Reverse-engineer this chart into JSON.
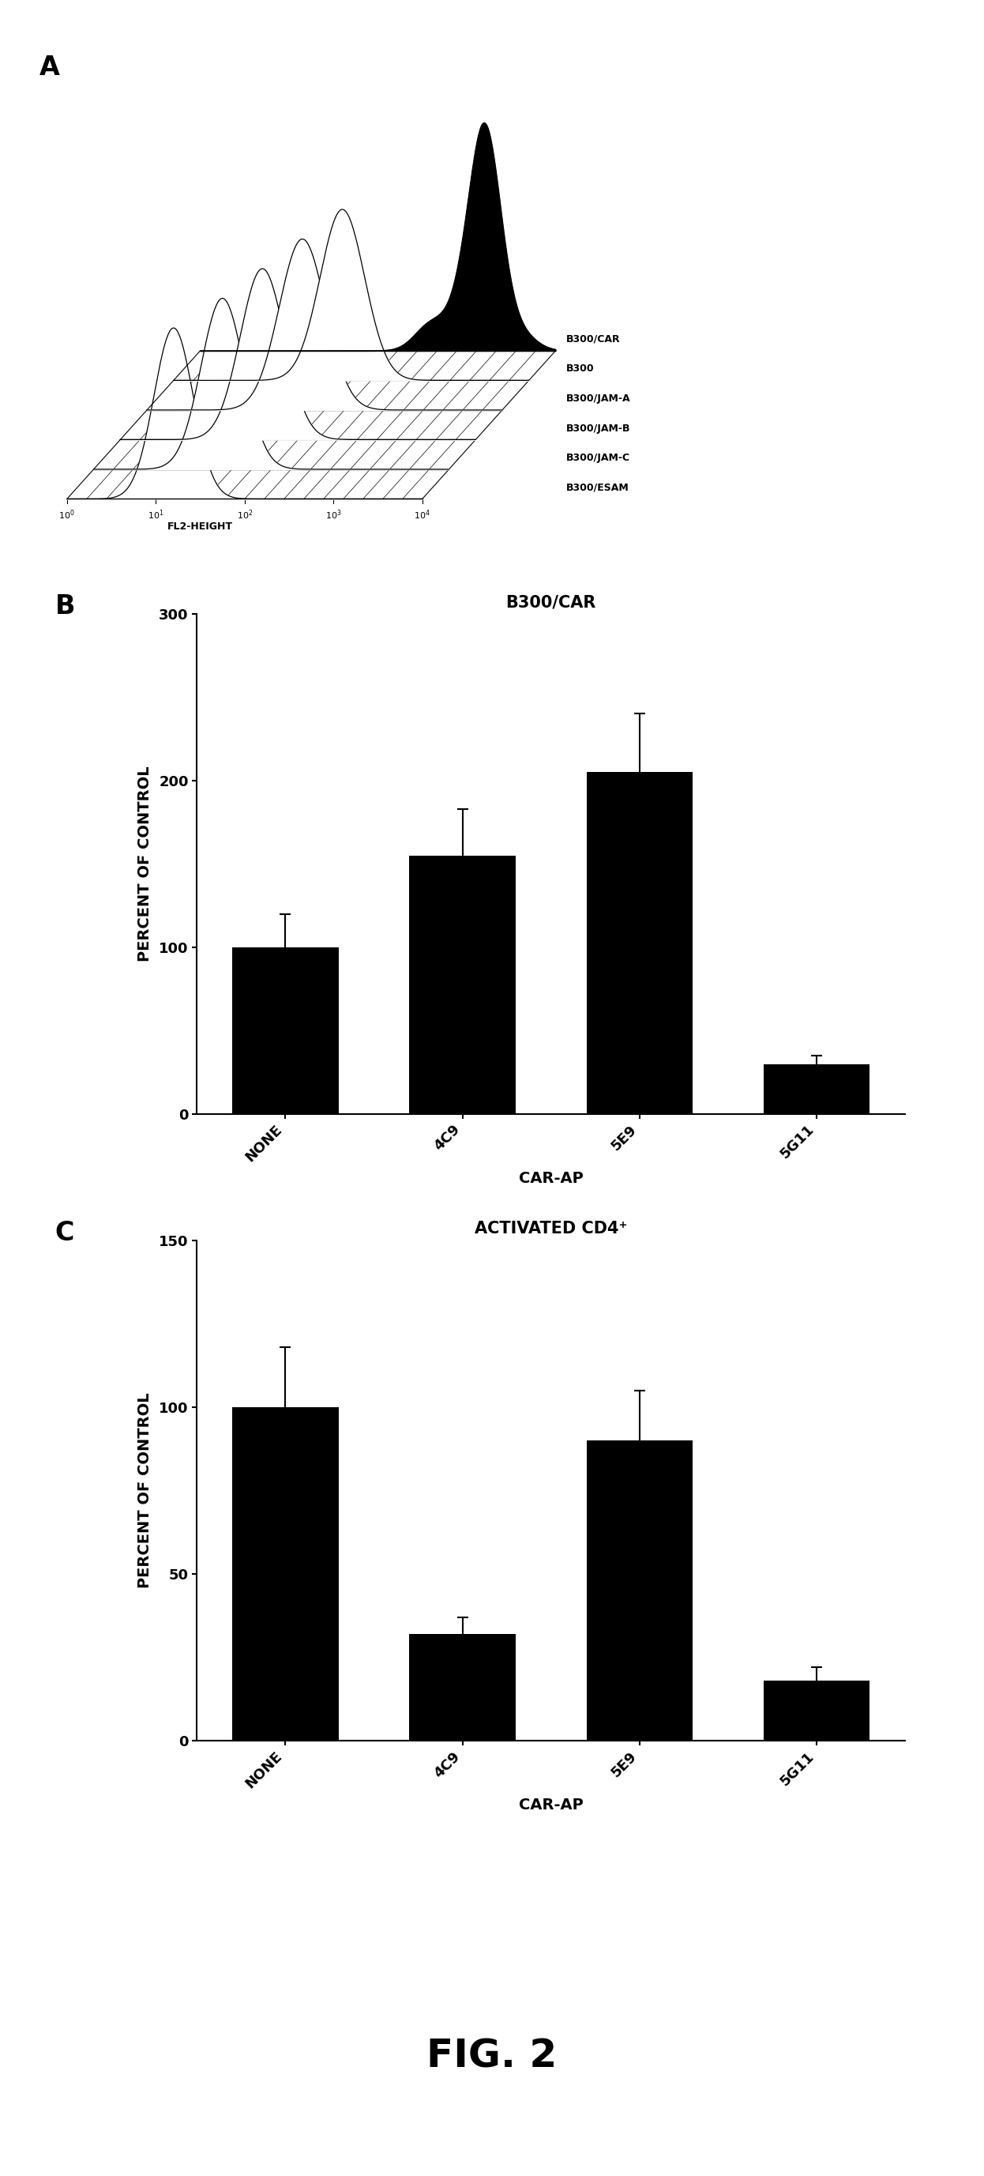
{
  "panel_A_labels": [
    "B300/CAR",
    "B300",
    "B300/JAM-A",
    "B300/JAM-B",
    "B300/JAM-C",
    "B300/ESAM"
  ],
  "panel_B_title": "B300/CAR",
  "panel_B_categories": [
    "NONE",
    "4C9",
    "5E9",
    "5G11"
  ],
  "panel_B_values": [
    100,
    155,
    205,
    30
  ],
  "panel_B_errors": [
    20,
    28,
    35,
    5
  ],
  "panel_B_ylabel": "PERCENT OF CONTROL",
  "panel_B_xlabel": "CAR-AP",
  "panel_B_ylim": [
    0,
    300
  ],
  "panel_B_yticks": [
    0,
    100,
    200,
    300
  ],
  "panel_C_title": "ACTIVATED CD4⁺",
  "panel_C_categories": [
    "NONE",
    "4C9",
    "5E9",
    "5G11"
  ],
  "panel_C_values": [
    100,
    32,
    90,
    18
  ],
  "panel_C_errors": [
    18,
    5,
    15,
    4
  ],
  "panel_C_ylabel": "PERCENT OF CONTROL",
  "panel_C_xlabel": "CAR-AP",
  "panel_C_ylim": [
    0,
    150
  ],
  "panel_C_yticks": [
    0,
    50,
    100,
    150
  ],
  "fig_label": "FIG. 2",
  "bar_color": "#000000",
  "bg_color": "#ffffff",
  "label_fontsize": 14,
  "tick_fontsize": 13,
  "title_fontsize": 15,
  "panel_label_fontsize": 24,
  "fig_label_fontsize": 36
}
